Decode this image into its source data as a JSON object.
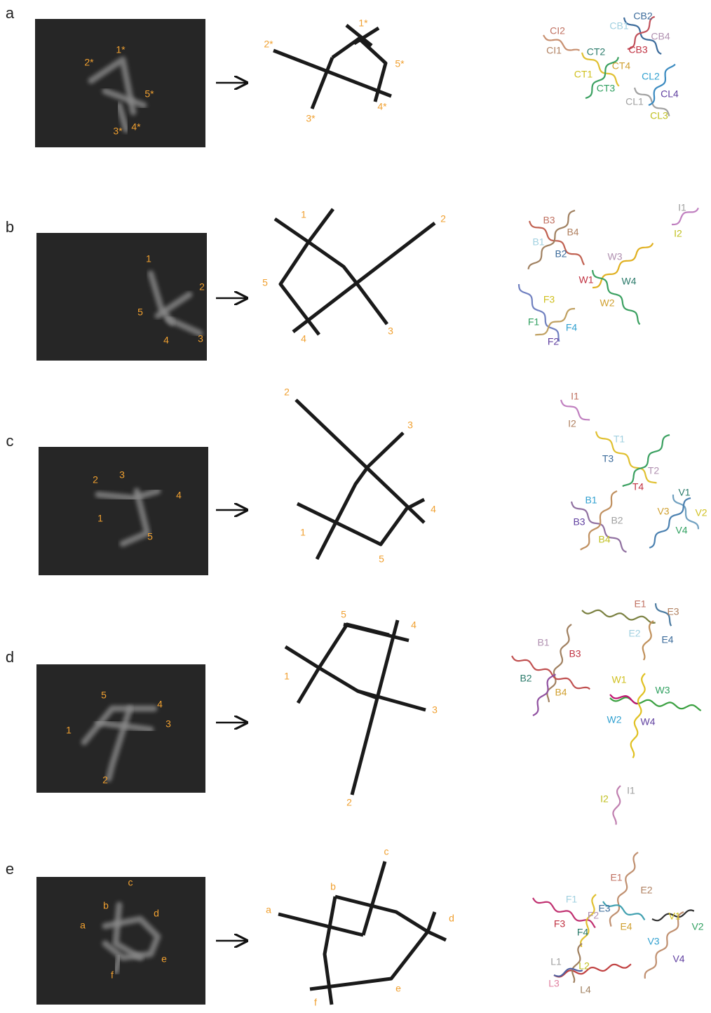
{
  "panels": [
    {
      "letter": "a",
      "image_labels": [
        "2*",
        "1*",
        "5*",
        "3*",
        "4*"
      ],
      "schematic_labels": [
        "2*",
        "1*",
        "5*",
        "3*",
        "4*"
      ],
      "helix_labels": [
        "CI2",
        "CI1",
        "CB1",
        "CB2",
        "CB4",
        "CB3",
        "CT2",
        "CT4",
        "CT1",
        "CT3",
        "CL2",
        "CL4",
        "CL1",
        "CL3"
      ]
    },
    {
      "letter": "b",
      "image_labels": [
        "1",
        "2",
        "5",
        "4",
        "3"
      ],
      "schematic_labels": [
        "1",
        "2",
        "5",
        "4",
        "3"
      ],
      "helix_labels": [
        "B3",
        "B4",
        "B1",
        "B2",
        "W3",
        "W1",
        "W4",
        "W2",
        "F3",
        "F1",
        "F4",
        "F2",
        "I1",
        "I2"
      ]
    },
    {
      "letter": "c",
      "image_labels": [
        "2",
        "3",
        "4",
        "1",
        "5"
      ],
      "schematic_labels": [
        "2",
        "3",
        "4",
        "1",
        "5"
      ],
      "helix_labels": [
        "I1",
        "I2",
        "T1",
        "T3",
        "T2",
        "T4",
        "V1",
        "V3",
        "V2",
        "V4",
        "B1",
        "B3",
        "B2",
        "B4"
      ]
    },
    {
      "letter": "d",
      "image_labels": [
        "5",
        "4",
        "3",
        "1",
        "2"
      ],
      "schematic_labels": [
        "5",
        "4",
        "1",
        "3",
        "2"
      ],
      "helix_labels": [
        "E1",
        "E3",
        "E2",
        "E4",
        "B1",
        "B3",
        "B2",
        "B4",
        "W1",
        "W3",
        "W2",
        "W4",
        "I1",
        "I2"
      ]
    },
    {
      "letter": "e",
      "image_labels": [
        "c",
        "b",
        "d",
        "a",
        "e",
        "f"
      ],
      "schematic_labels": [
        "c",
        "b",
        "a",
        "d",
        "e",
        "f"
      ],
      "helix_labels": [
        "E1",
        "E2",
        "F1",
        "E3",
        "F2",
        "F3",
        "F4",
        "E4",
        "V1",
        "V2",
        "V3",
        "V4",
        "L1",
        "L2",
        "L3",
        "L4"
      ]
    }
  ]
}
